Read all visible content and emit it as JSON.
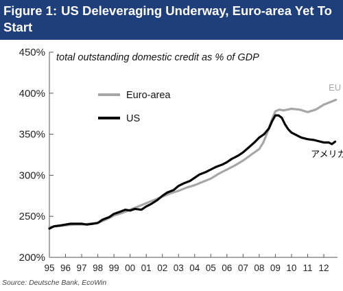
{
  "header": {
    "figure_label": "Figure 1:",
    "title": "US Deleveraging Underway, Euro-area Yet To Start"
  },
  "footer": {
    "source": "Source: Deutsche Bank, EcoWin"
  },
  "colors": {
    "title_bar": "#1f3f7a",
    "us": "#000000",
    "euro_area": "#a6a6a6"
  },
  "chart_data": {
    "type": "line",
    "title": "",
    "subtitle": "total outstanding domestic credit as % of GDP",
    "xlabel": "",
    "ylabel": "",
    "xlim": [
      1995.0,
      2012.85
    ],
    "ylim": [
      200,
      450
    ],
    "y_ticks": [
      200,
      250,
      300,
      350,
      400,
      450
    ],
    "y_tick_labels": [
      "200%",
      "250%",
      "300%",
      "350%",
      "400%",
      "450%"
    ],
    "x_ticks": [
      1995,
      1996,
      1997,
      1998,
      1999,
      2000,
      2001,
      2002,
      2003,
      2004,
      2005,
      2006,
      2007,
      2008,
      2009,
      2010,
      2011,
      2012
    ],
    "x_tick_labels": [
      "95",
      "96",
      "97",
      "98",
      "99",
      "00",
      "01",
      "02",
      "03",
      "04",
      "05",
      "06",
      "07",
      "08",
      "09",
      "10",
      "11",
      "12"
    ],
    "grid": false,
    "legend": {
      "position": "top-left",
      "entries": [
        "Euro-area",
        "US"
      ]
    },
    "annotations": [
      {
        "text": "EU",
        "x": 2012.3,
        "y": 403,
        "series": "Euro-area"
      },
      {
        "text": "アメリカ",
        "x": 2011.2,
        "y": 322,
        "series": "US"
      }
    ],
    "series": [
      {
        "name": "Euro-area",
        "color": "#a6a6a6",
        "x": [
          1995.0,
          1995.5,
          1996.0,
          1996.5,
          1997.0,
          1997.5,
          1998.0,
          1998.5,
          1999.0,
          1999.5,
          2000.0,
          2000.5,
          2001.0,
          2001.5,
          2002.0,
          2002.5,
          2003.0,
          2003.5,
          2004.0,
          2004.5,
          2005.0,
          2005.5,
          2006.0,
          2006.5,
          2007.0,
          2007.5,
          2008.0,
          2008.25,
          2008.5,
          2008.75,
          2009.0,
          2009.25,
          2009.5,
          2009.75,
          2010.0,
          2010.5,
          2011.0,
          2011.5,
          2012.0,
          2012.5,
          2012.75
        ],
        "y": [
          237,
          238,
          239,
          240,
          240,
          241,
          242,
          246,
          251,
          254,
          258,
          262,
          266,
          270,
          274,
          278,
          281,
          285,
          288,
          292,
          296,
          302,
          307,
          312,
          318,
          325,
          332,
          340,
          352,
          366,
          378,
          380,
          379,
          380,
          381,
          380,
          377,
          380,
          386,
          390,
          392
        ]
      },
      {
        "name": "US",
        "color": "#000000",
        "x": [
          1995.0,
          1995.3,
          1995.7,
          1996.0,
          1996.3,
          1996.7,
          1997.0,
          1997.3,
          1997.7,
          1998.0,
          1998.3,
          1998.7,
          1999.0,
          1999.3,
          1999.7,
          2000.0,
          2000.3,
          2000.7,
          2001.0,
          2001.3,
          2001.7,
          2002.0,
          2002.3,
          2002.7,
          2003.0,
          2003.3,
          2003.7,
          2004.0,
          2004.3,
          2004.7,
          2005.0,
          2005.3,
          2005.7,
          2006.0,
          2006.3,
          2006.7,
          2007.0,
          2007.3,
          2007.7,
          2008.0,
          2008.3,
          2008.6,
          2008.8,
          2009.0,
          2009.2,
          2009.4,
          2009.6,
          2009.8,
          2010.0,
          2010.3,
          2010.6,
          2011.0,
          2011.4,
          2011.8,
          2012.0,
          2012.3,
          2012.5,
          2012.7
        ],
        "y": [
          235,
          238,
          239,
          240,
          241,
          241,
          241,
          240,
          241,
          242,
          246,
          249,
          253,
          255,
          258,
          257,
          259,
          258,
          262,
          265,
          270,
          275,
          279,
          282,
          287,
          290,
          293,
          297,
          301,
          304,
          307,
          310,
          313,
          316,
          320,
          324,
          328,
          333,
          340,
          346,
          350,
          357,
          366,
          373,
          373,
          370,
          362,
          356,
          352,
          349,
          346,
          344,
          343,
          341,
          340,
          340,
          338,
          341
        ]
      }
    ]
  }
}
